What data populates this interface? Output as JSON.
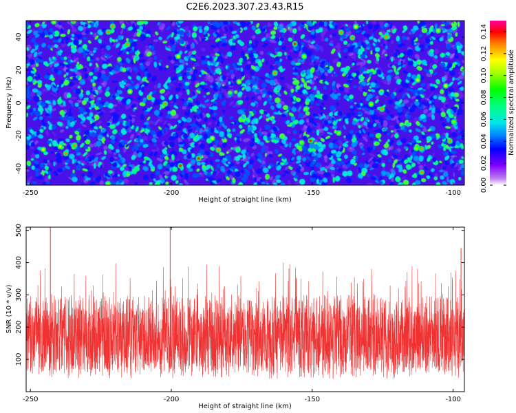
{
  "title": "C2E6.2023.307.23.43.R15",
  "chart_data": [
    {
      "type": "heatmap",
      "xlabel": "Height of straight line (km)",
      "ylabel": "Frequency (Hz)",
      "xlim": [
        -251.5,
        -96
      ],
      "ylim": [
        -50,
        50
      ],
      "xticks": [
        -250,
        -200,
        -150,
        -100
      ],
      "yticks": [
        -40,
        -20,
        0,
        20,
        40
      ],
      "colorbar": {
        "label": "Normalized spectral amplitude",
        "range": [
          0,
          0.15
        ],
        "ticks": [
          "0.00",
          "0.02",
          "0.04",
          "0.06",
          "0.08",
          "0.10",
          "0.12",
          "0.14"
        ]
      }
    },
    {
      "type": "line",
      "xlabel": "Height of straight line (km)",
      "ylabel": "SNR (10 * v/v)",
      "xlim": [
        -251.5,
        -96
      ],
      "ylim": [
        0,
        510
      ],
      "xticks": [
        -250,
        -200,
        -150,
        -100
      ],
      "yticks": [
        100,
        200,
        300,
        400,
        500
      ],
      "series_color": "#f03232",
      "typical_range": [
        50,
        300
      ],
      "peaks": [
        {
          "x": -242.9,
          "y": 510
        },
        {
          "x": -200.4,
          "y": 510
        },
        {
          "x": -97.2,
          "y": 445
        }
      ]
    }
  ]
}
